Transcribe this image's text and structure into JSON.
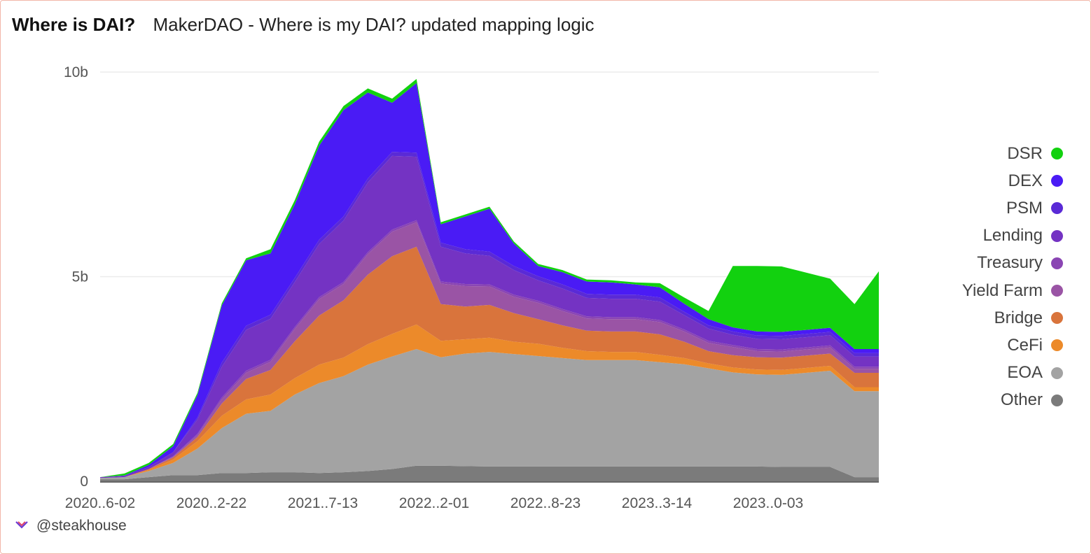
{
  "header": {
    "title": "Where is DAI?",
    "subtitle": "MakerDAO - Where is my DAI? updated mapping logic"
  },
  "footer": {
    "handle": "@steakhouse"
  },
  "chart_data": {
    "type": "area",
    "stacked": true,
    "title": "Where is DAI?",
    "subtitle": "MakerDAO - Where is my DAI? updated mapping logic",
    "xlabel": "",
    "ylabel": "",
    "ylim": [
      0,
      10
    ],
    "y_unit": "billions",
    "y_ticks": [
      {
        "value": 0,
        "label": "0"
      },
      {
        "value": 5,
        "label": "5b"
      },
      {
        "value": 10,
        "label": "10b"
      }
    ],
    "x_tick_labels": [
      "2020..6-02",
      "2020..2-22",
      "2021..7-13",
      "2022..2-01",
      "2022..8-23",
      "2023..3-14",
      "2023..0-03"
    ],
    "grid": "horizontal",
    "legend_position": "right",
    "x": [
      "2020-06",
      "2020-08",
      "2020-10",
      "2020-12",
      "2021-02",
      "2021-04",
      "2021-05",
      "2021-06",
      "2021-08",
      "2021-10",
      "2021-11",
      "2021-12",
      "2022-01",
      "2022-02",
      "2022-03",
      "2022-04",
      "2022-05",
      "2022-06",
      "2022-07",
      "2022-09",
      "2022-10",
      "2022-11",
      "2023-01",
      "2023-03",
      "2023-04",
      "2023-06",
      "2023-07",
      "2023-08",
      "2023-09",
      "2023-10",
      "2023-11",
      "2023-12",
      "2024-01"
    ],
    "series": [
      {
        "name": "Other",
        "color": "#7b7b7b",
        "values": [
          0.05,
          0.05,
          0.1,
          0.15,
          0.15,
          0.2,
          0.2,
          0.22,
          0.22,
          0.2,
          0.22,
          0.25,
          0.3,
          0.38,
          0.38,
          0.37,
          0.36,
          0.36,
          0.36,
          0.36,
          0.36,
          0.36,
          0.36,
          0.36,
          0.36,
          0.36,
          0.36,
          0.36,
          0.35,
          0.35,
          0.35,
          0.1,
          0.1
        ]
      },
      {
        "name": "EOA",
        "color": "#a3a3a3",
        "values": [
          0.03,
          0.05,
          0.15,
          0.3,
          0.65,
          1.1,
          1.45,
          1.5,
          1.9,
          2.2,
          2.35,
          2.6,
          2.75,
          2.85,
          2.65,
          2.75,
          2.8,
          2.75,
          2.7,
          2.65,
          2.6,
          2.6,
          2.6,
          2.55,
          2.5,
          2.4,
          2.3,
          2.25,
          2.25,
          2.3,
          2.35,
          2.1,
          2.1
        ]
      },
      {
        "name": "CeFi",
        "color": "#ec8a2a",
        "values": [
          0.0,
          0.0,
          0.03,
          0.08,
          0.18,
          0.3,
          0.35,
          0.4,
          0.4,
          0.45,
          0.45,
          0.5,
          0.55,
          0.6,
          0.4,
          0.35,
          0.35,
          0.3,
          0.3,
          0.25,
          0.22,
          0.2,
          0.2,
          0.18,
          0.15,
          0.12,
          0.12,
          0.12,
          0.12,
          0.12,
          0.12,
          0.1,
          0.1
        ]
      },
      {
        "name": "Bridge",
        "color": "#d9743c",
        "values": [
          0.0,
          0.0,
          0.02,
          0.05,
          0.1,
          0.3,
          0.5,
          0.6,
          0.9,
          1.2,
          1.4,
          1.7,
          1.9,
          1.9,
          0.9,
          0.8,
          0.8,
          0.7,
          0.6,
          0.55,
          0.5,
          0.5,
          0.5,
          0.5,
          0.4,
          0.3,
          0.3,
          0.3,
          0.3,
          0.3,
          0.3,
          0.35,
          0.35
        ]
      },
      {
        "name": "Yield Farm",
        "color": "#9a54a5",
        "values": [
          0.0,
          0.0,
          0.0,
          0.02,
          0.05,
          0.1,
          0.15,
          0.2,
          0.3,
          0.4,
          0.4,
          0.5,
          0.6,
          0.6,
          0.5,
          0.5,
          0.45,
          0.4,
          0.4,
          0.35,
          0.3,
          0.3,
          0.3,
          0.3,
          0.25,
          0.2,
          0.2,
          0.15,
          0.15,
          0.15,
          0.15,
          0.1,
          0.1
        ]
      },
      {
        "name": "Treasury",
        "color": "#8a45b3",
        "values": [
          0.0,
          0.0,
          0.0,
          0.01,
          0.03,
          0.05,
          0.05,
          0.05,
          0.05,
          0.05,
          0.05,
          0.05,
          0.05,
          0.05,
          0.05,
          0.05,
          0.05,
          0.05,
          0.05,
          0.05,
          0.05,
          0.05,
          0.05,
          0.05,
          0.05,
          0.05,
          0.05,
          0.05,
          0.05,
          0.05,
          0.05,
          0.05,
          0.05
        ]
      },
      {
        "name": "Lending",
        "color": "#7433c3",
        "values": [
          0.02,
          0.03,
          0.05,
          0.1,
          0.35,
          0.75,
          1.0,
          1.0,
          1.1,
          1.3,
          1.5,
          1.7,
          1.8,
          1.55,
          0.85,
          0.75,
          0.7,
          0.6,
          0.5,
          0.5,
          0.45,
          0.45,
          0.45,
          0.45,
          0.35,
          0.3,
          0.25,
          0.25,
          0.25,
          0.25,
          0.25,
          0.25,
          0.25
        ]
      },
      {
        "name": "PSM",
        "color": "#5a2ad6",
        "values": [
          0.0,
          0.0,
          0.0,
          0.0,
          0.05,
          0.1,
          0.1,
          0.1,
          0.1,
          0.1,
          0.1,
          0.1,
          0.1,
          0.1,
          0.1,
          0.1,
          0.1,
          0.1,
          0.1,
          0.1,
          0.1,
          0.1,
          0.1,
          0.1,
          0.08,
          0.08,
          0.08,
          0.08,
          0.08,
          0.08,
          0.08,
          0.08,
          0.08
        ]
      },
      {
        "name": "DEX",
        "color": "#4a1bf5",
        "values": [
          0.0,
          0.01,
          0.05,
          0.15,
          0.55,
          1.4,
          1.6,
          1.5,
          1.8,
          2.3,
          2.6,
          2.1,
          1.2,
          1.7,
          0.45,
          0.8,
          1.05,
          0.55,
          0.25,
          0.3,
          0.3,
          0.3,
          0.25,
          0.25,
          0.2,
          0.15,
          0.1,
          0.1,
          0.1,
          0.1,
          0.1,
          0.1,
          0.1
        ]
      },
      {
        "name": "DSR",
        "color": "#12d10f",
        "values": [
          0.0,
          0.05,
          0.05,
          0.05,
          0.05,
          0.05,
          0.05,
          0.1,
          0.1,
          0.1,
          0.1,
          0.1,
          0.1,
          0.1,
          0.05,
          0.05,
          0.05,
          0.05,
          0.05,
          0.05,
          0.05,
          0.05,
          0.05,
          0.1,
          0.15,
          0.2,
          1.5,
          1.6,
          1.6,
          1.4,
          1.2,
          1.1,
          1.9
        ]
      }
    ]
  }
}
